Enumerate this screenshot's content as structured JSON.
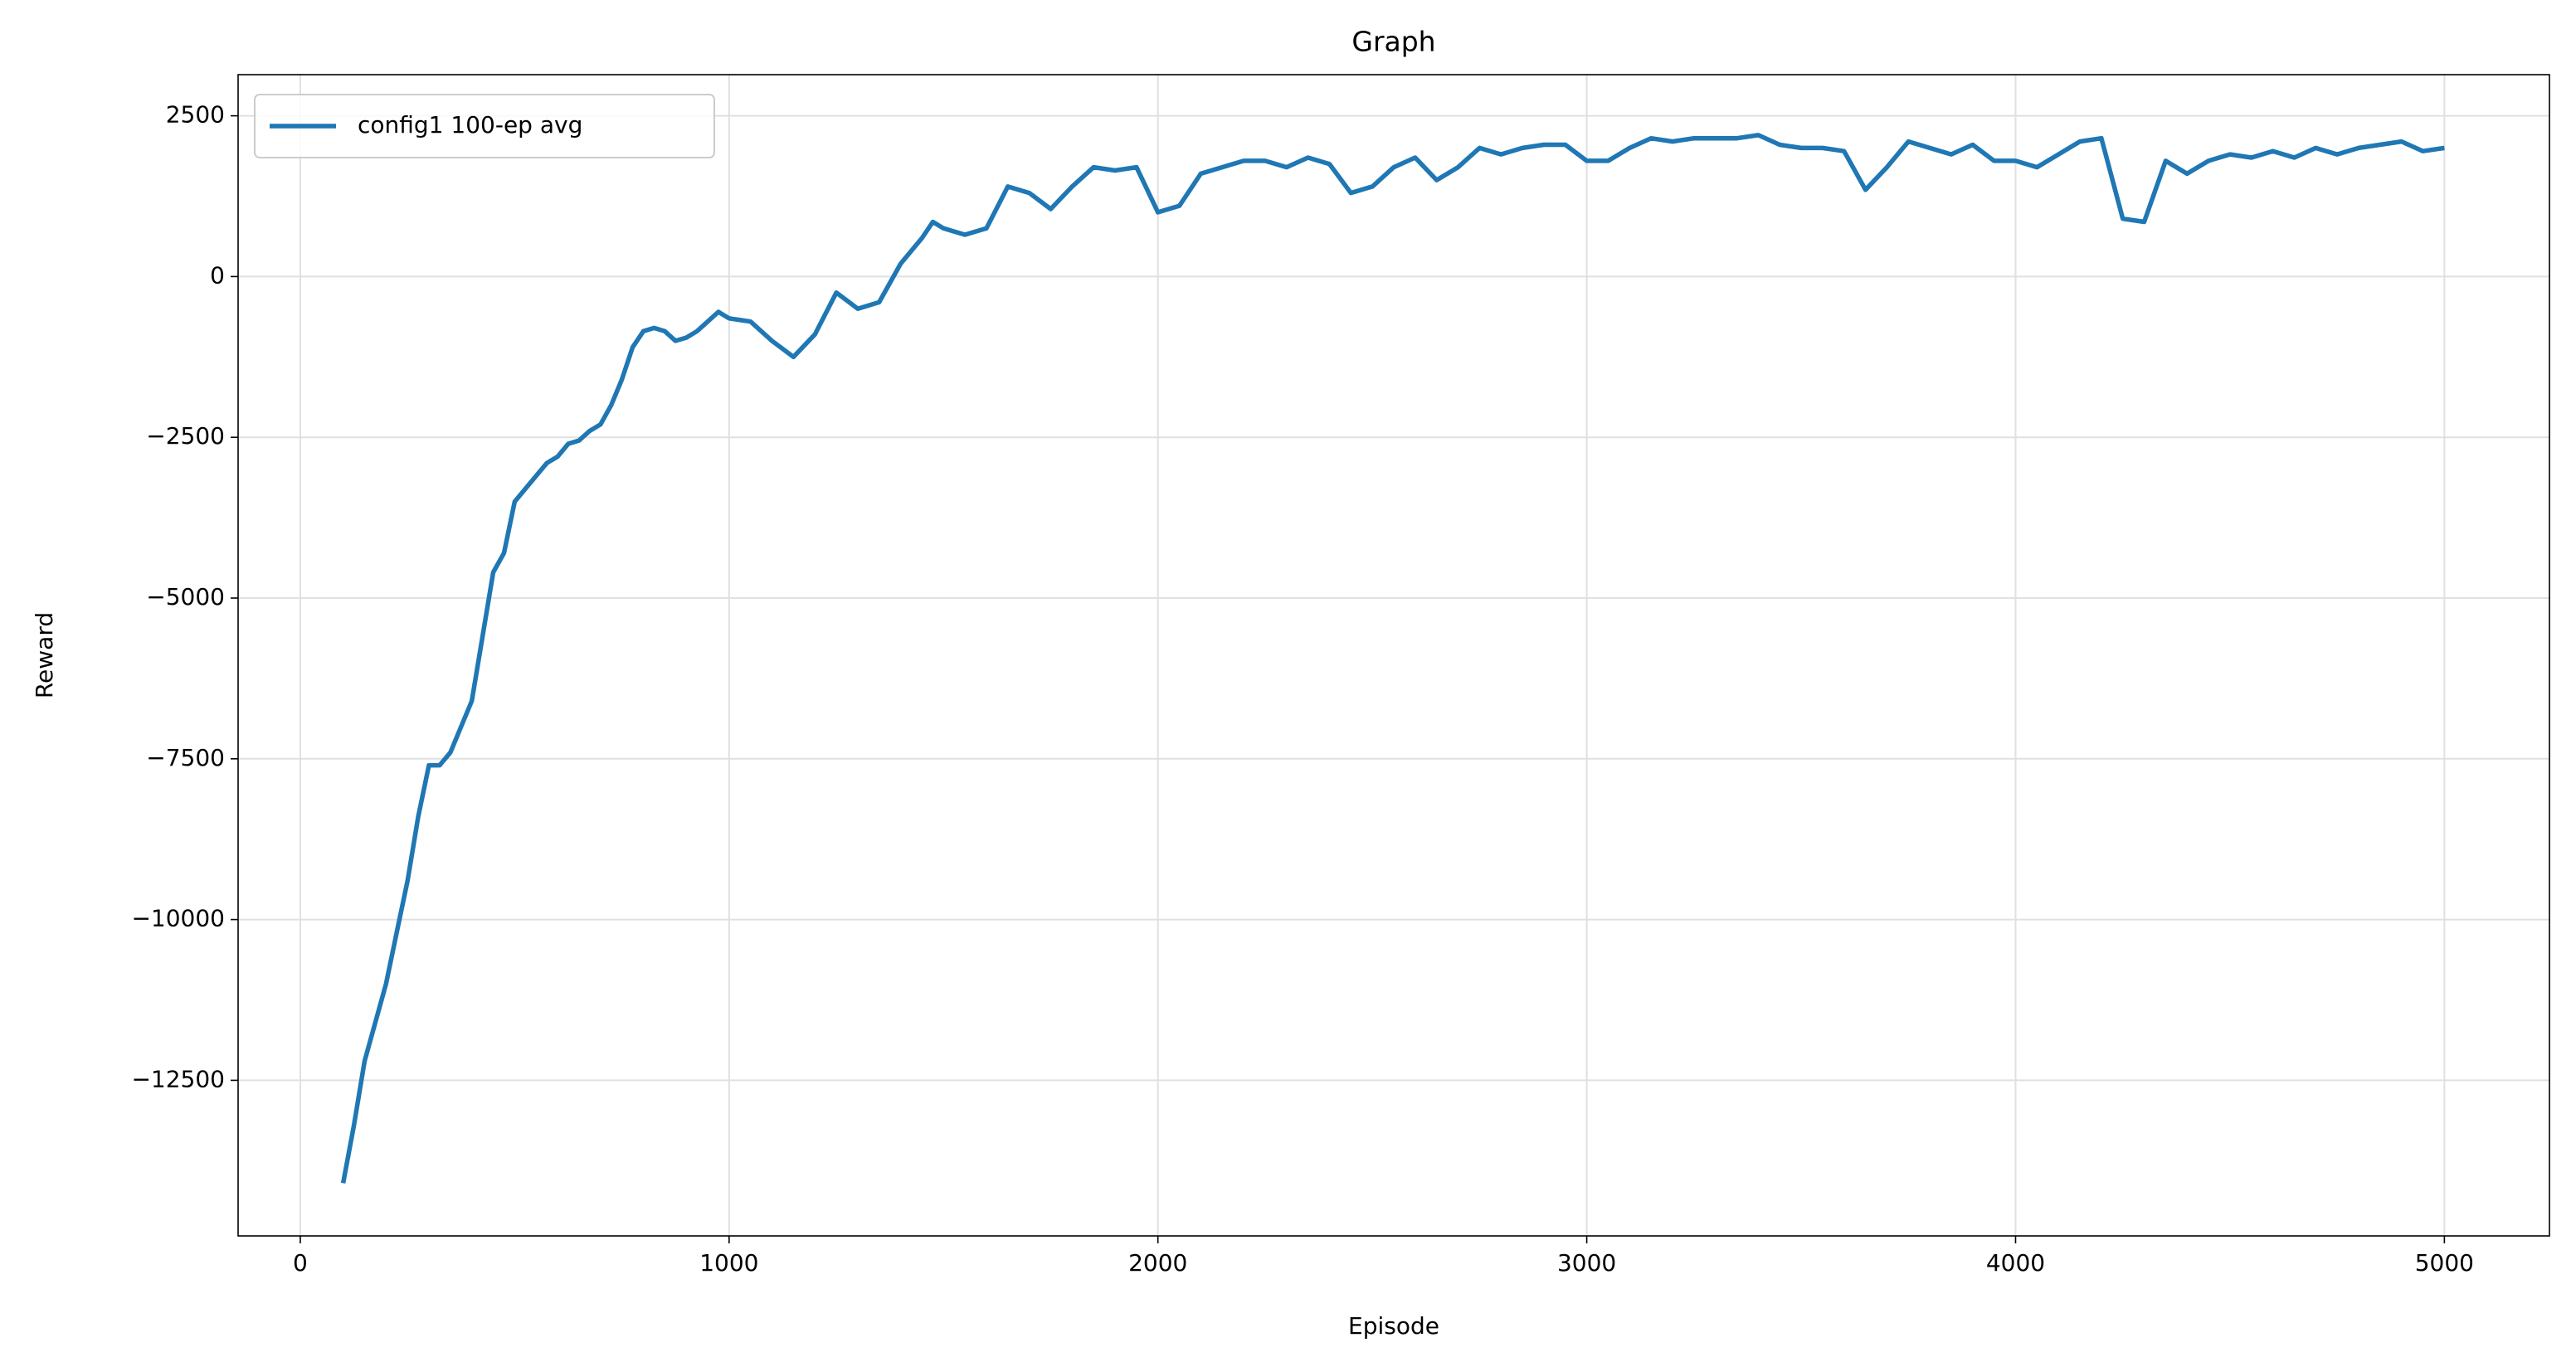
{
  "chart_data": {
    "type": "line",
    "title": "Graph",
    "x_label": "Episode",
    "y_label": "Reward",
    "legend": "upper left",
    "grid": true,
    "xlim": [
      -145,
      5245
    ],
    "ylim": [
      -14920,
      3140
    ],
    "xticks": [
      0,
      1000,
      2000,
      3000,
      4000,
      5000
    ],
    "yticks": [
      {
        "value": -12500,
        "label": "−12500"
      },
      {
        "value": -10000,
        "label": "−10000"
      },
      {
        "value": -7500,
        "label": "−7500"
      },
      {
        "value": -5000,
        "label": "−5000"
      },
      {
        "value": -2500,
        "label": "−2500"
      },
      0,
      2500
    ],
    "x": [
      100,
      125,
      150,
      175,
      200,
      225,
      250,
      275,
      300,
      325,
      350,
      375,
      400,
      425,
      450,
      475,
      500,
      525,
      550,
      575,
      600,
      625,
      650,
      675,
      700,
      725,
      750,
      775,
      800,
      825,
      850,
      875,
      900,
      925,
      950,
      975,
      1000,
      1050,
      1075,
      1100,
      1150,
      1200,
      1250,
      1300,
      1350,
      1400,
      1450,
      1475,
      1500,
      1550,
      1600,
      1650,
      1700,
      1750,
      1800,
      1850,
      1900,
      1950,
      2000,
      2050,
      2100,
      2150,
      2200,
      2250,
      2300,
      2350,
      2400,
      2450,
      2500,
      2550,
      2600,
      2650,
      2700,
      2750,
      2800,
      2850,
      2900,
      2950,
      3000,
      3050,
      3100,
      3150,
      3200,
      3250,
      3300,
      3350,
      3400,
      3450,
      3500,
      3550,
      3600,
      3650,
      3700,
      3750,
      3800,
      3850,
      3900,
      3950,
      4000,
      4050,
      4100,
      4150,
      4200,
      4250,
      4300,
      4350,
      4400,
      4450,
      4500,
      4550,
      4600,
      4650,
      4700,
      4750,
      4800,
      4850,
      4900,
      4950,
      5000
    ],
    "series": [
      {
        "name": "config1 100-ep avg",
        "color": "#1f77b4",
        "values": [
          -14100,
          -13200,
          -12200,
          -11600,
          -11000,
          -10200,
          -9400,
          -8400,
          -7600,
          -7600,
          -7400,
          -7000,
          -6600,
          -5600,
          -4600,
          -4300,
          -3500,
          -3300,
          -3100,
          -2900,
          -2800,
          -2600,
          -2550,
          -2400,
          -2300,
          -2000,
          -1600,
          -1100,
          -850,
          -800,
          -850,
          -1000,
          -950,
          -850,
          -700,
          -550,
          -650,
          -700,
          -850,
          -1000,
          -1250,
          -900,
          -250,
          -500,
          -400,
          200,
          600,
          850,
          750,
          650,
          750,
          1400,
          1300,
          1050,
          1400,
          1700,
          1650,
          1700,
          1000,
          1100,
          1600,
          1700,
          1800,
          1800,
          1700,
          1850,
          1750,
          1300,
          1400,
          1700,
          1850,
          1500,
          1700,
          2000,
          1900,
          2000,
          2050,
          2050,
          1800,
          1800,
          2000,
          2150,
          2100,
          2150,
          2150,
          2150,
          2200,
          2050,
          2000,
          2000,
          1950,
          1350,
          1700,
          2100,
          2000,
          1900,
          2050,
          1800,
          1800,
          1700,
          1900,
          2100,
          2150,
          900,
          850,
          1800,
          1600,
          1800,
          1900,
          1850,
          1950,
          1850,
          2000,
          1900,
          2000,
          2050,
          2100,
          1950,
          2000
        ]
      }
    ]
  }
}
